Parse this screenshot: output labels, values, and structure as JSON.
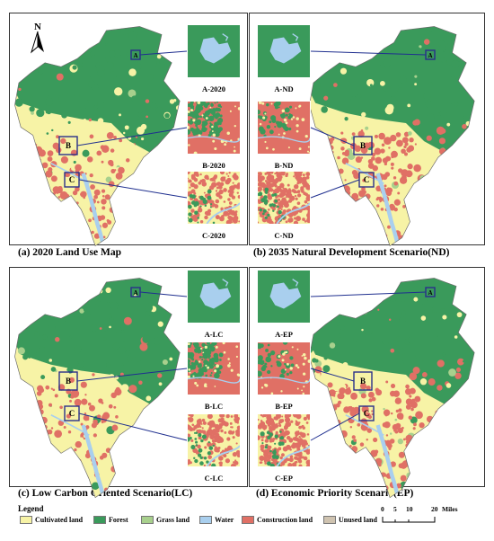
{
  "panels": [
    {
      "id": "a",
      "title": "(a) 2020 Land Use Map",
      "insets": [
        "A-2020",
        "B-2020",
        "C-2020"
      ]
    },
    {
      "id": "b",
      "title": "(b) 2035 Natural Development Scenario(ND)",
      "insets": [
        "A-ND",
        "B-ND",
        "C-ND"
      ]
    },
    {
      "id": "c",
      "title": "(c) Low Carbon Oriented Scenario(LC)",
      "insets": [
        "A-LC",
        "B-LC",
        "C-LC"
      ]
    },
    {
      "id": "d",
      "title": "(d) Economic Priority Scenario(EP)",
      "insets": [
        "A-EP",
        "B-EP",
        "C-EP"
      ]
    }
  ],
  "region_labels": [
    "A",
    "B",
    "C"
  ],
  "north_label": "N",
  "legend": {
    "title": "Legend",
    "items": [
      {
        "label": "Cultivated land",
        "color": "#f7f3a6"
      },
      {
        "label": "Forest",
        "color": "#3a9a5b"
      },
      {
        "label": "Grass land",
        "color": "#a8d08d"
      },
      {
        "label": "Water",
        "color": "#a9cfee"
      },
      {
        "label": "Construction land",
        "color": "#e07065"
      },
      {
        "label": "Unused land",
        "color": "#cfc3b0"
      }
    ]
  },
  "scale": {
    "ticks": [
      "0",
      "5",
      "10",
      "20"
    ],
    "unit": "Miles"
  },
  "colors": {
    "frame": "#333333",
    "leader": "#1f2f8f",
    "box": "#2a2f8a"
  }
}
